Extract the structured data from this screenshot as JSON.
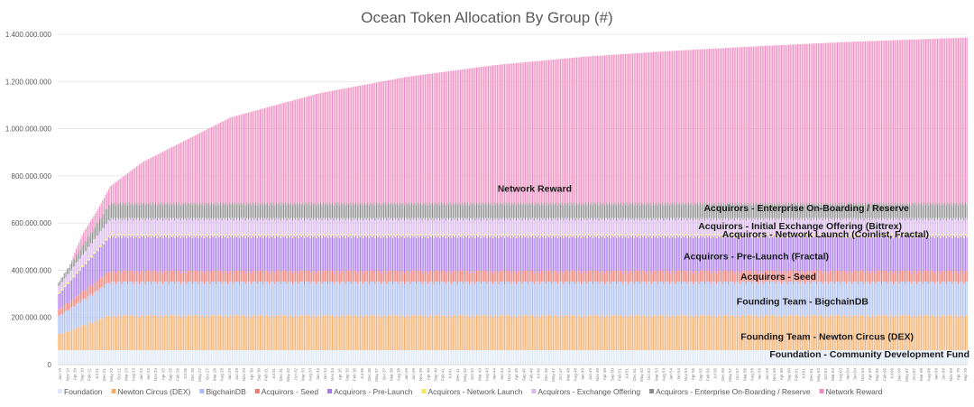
{
  "chart_data": {
    "type": "bar",
    "stacked": true,
    "title": "Ocean Token Allocation By Group (#)",
    "xlabel": "",
    "ylabel": "",
    "ylim": [
      0,
      1400000000
    ],
    "yticks": [
      0,
      200000000,
      400000000,
      600000000,
      800000000,
      1000000000,
      1200000000,
      1400000000
    ],
    "ytick_labels": [
      "0",
      "200.000.000",
      "400.000.000",
      "600.000.000",
      "800.000.000",
      "1.000.000.000",
      "1.200.000.000",
      "1.400.000.000"
    ],
    "grid": true,
    "legend": "bottom",
    "x_range": [
      "Apr 19",
      "Sep 70"
    ],
    "x_tick_labels": [
      "Jun 19",
      "Nov 19",
      "Apr 20",
      "Sep 20",
      "Feb 21",
      "Jul 21",
      "Dec 21",
      "May 22",
      "Oct 22",
      "Mar 23",
      "Aug 23",
      "Jan 24",
      "Jun 24",
      "Nov 24",
      "Apr 25",
      "Sep 25",
      "Feb 26",
      "Jul 26",
      "Dec 26",
      "May 27",
      "Oct 27",
      "Mar 28",
      "Aug 28",
      "Jan 29",
      "Jun 29",
      "Nov 29",
      "Apr 30",
      "Sep 30",
      "Feb 31",
      "Jul 31",
      "Dec 31",
      "May 32",
      "Oct 32",
      "Mar 33",
      "Aug 33",
      "Jan 34",
      "Jun 34",
      "Nov 34",
      "Apr 35",
      "Sep 35",
      "Feb 36",
      "Jul 36",
      "Dec 36",
      "May 37",
      "Oct 37",
      "Mar 38",
      "Aug 38",
      "Jan 39",
      "Jun 39",
      "Nov 39",
      "Apr 40",
      "Sep 40",
      "Feb 41",
      "Jul 41",
      "Dec 41",
      "May 42",
      "Oct 42",
      "Mar 43",
      "Aug 43",
      "Jan 44",
      "Jun 44",
      "Nov 44",
      "Apr 45",
      "Sep 45",
      "Feb 46",
      "Jul 46",
      "Dec 46",
      "May 47",
      "Oct 47",
      "Mar 48",
      "Aug 48",
      "Jan 49",
      "Jun 49",
      "Nov 49",
      "Apr 50",
      "Sep 50",
      "Feb 51",
      "Jul 51",
      "Dec 51",
      "May 52",
      "Oct 52",
      "Mar 53",
      "Aug 53",
      "Jan 54",
      "Jun 54",
      "Nov 54",
      "Apr 55",
      "Sep 55",
      "Feb 56",
      "Jul 56",
      "Dec 56",
      "May 57",
      "Oct 57",
      "Mar 58",
      "Aug 58",
      "Jan 59",
      "Jun 59",
      "Nov 59",
      "Apr 60",
      "Sep 60",
      "Feb 61",
      "Jul 61",
      "Dec 61",
      "May 62",
      "Oct 62",
      "Mar 63",
      "Aug 63",
      "Jan 64",
      "Jun 64",
      "Nov 64",
      "Apr 65",
      "Sep 65",
      "Feb 66",
      "Jul 66",
      "Dec 66",
      "May 67",
      "Oct 67",
      "Mar 68",
      "Aug 68",
      "Jan 69",
      "Jun 69",
      "Nov 69",
      "Apr 70",
      "Sep 70"
    ],
    "series": [
      {
        "name": "Foundation",
        "color": "#dde9f7",
        "final_value": 61000000,
        "annotation": "Foundation - Community Development Fund"
      },
      {
        "name": "Newton Circus (DEX)",
        "color": "#f5ad6a",
        "final_value": 149000000,
        "annotation": "Founding Team - Newton Circus (DEX)"
      },
      {
        "name": "BigchainDB",
        "color": "#aabdf2",
        "final_value": 142000000,
        "annotation": "Founding Team - BigchainDB"
      },
      {
        "name": "Acquirors - Seed",
        "color": "#f07a70",
        "final_value": 47000000,
        "annotation": "Acquirors - Seed"
      },
      {
        "name": "Acquirors - Pre-Launch",
        "color": "#a978f0",
        "final_value": 149000000,
        "annotation": "Acquirors - Pre-Launch (Fractal)"
      },
      {
        "name": "Acquirors - Network Launch",
        "color": "#f7ea63",
        "final_value": 6000000,
        "annotation": "Acquirors - Network Launch (Coinlist, Fractal)"
      },
      {
        "name": "Acquirors - Exchange Offering",
        "color": "#dab8ef",
        "final_value": 68000000,
        "annotation": "Acquirors - Initial Exchange Offering (Bittrex)"
      },
      {
        "name": "Acquirors - Enterprise On-Boarding / Reserve",
        "color": "#8c8c8c",
        "final_value": 65000000,
        "annotation": "Acquirors - Enterprise On-Boarding / Reserve"
      },
      {
        "name": "Network Reward",
        "color": "#f28bc0",
        "final_value": 698000000,
        "annotation": "Network Reward"
      }
    ],
    "totals_at_milestones": [
      {
        "x": "Jun 19",
        "total": 330000000
      },
      {
        "x": "Apr 20",
        "total": 490000000
      },
      {
        "x": "Sep 20",
        "total": 560000000
      },
      {
        "x": "Jul 21",
        "total": 660000000
      },
      {
        "x": "Mar 22",
        "total": 755000000
      },
      {
        "x": "Jan 24",
        "total": 858000000
      },
      {
        "x": "Jan 29",
        "total": 1048000000
      },
      {
        "x": "Jan 34",
        "total": 1150000000
      },
      {
        "x": "Jan 39",
        "total": 1220000000
      },
      {
        "x": "Jan 44",
        "total": 1270000000
      },
      {
        "x": "Jan 49",
        "total": 1305000000
      },
      {
        "x": "Jan 54",
        "total": 1330000000
      },
      {
        "x": "Jan 59",
        "total": 1350000000
      },
      {
        "x": "Jan 64",
        "total": 1368000000
      },
      {
        "x": "Sep 70",
        "total": 1386000000
      }
    ]
  }
}
